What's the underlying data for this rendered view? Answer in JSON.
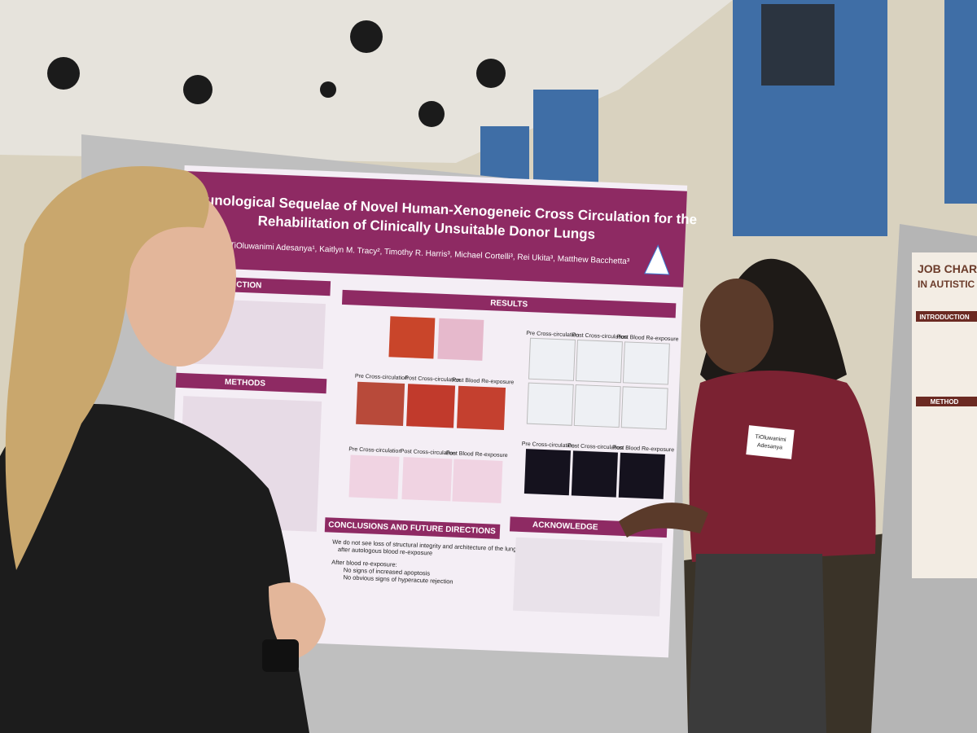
{
  "poster": {
    "title_line1": "he Immunological Sequelae of Novel Human-Xenogeneic Cross Circulation for the",
    "title_line2": "Rehabilitation of Clinically Unsuitable Donor Lungs",
    "authors": "TiOluwanimi Adesanya¹, Kaitlyn M. Tracy², Timothy R. Harris³, Michael Cortelli³, Rei Ukita³, Matthew Bacchetta³",
    "sections": {
      "introduction": "CTION",
      "methods": "METHODS",
      "results": "RESULTS",
      "conclusions": "CONCLUSIONS AND FUTURE DIRECTIONS",
      "acknowledgements": "ACKNOWLEDGE"
    },
    "panel_labels": [
      "Pre Cross-circulation",
      "Post Cross-circulation",
      "Post Blood Re-exposure"
    ],
    "conclusions": [
      "We do not see loss of structural integrity and architecture of the lungs",
      "after autologous blood re-exposure",
      "After blood re-exposure:",
      "No signs of increased apoptosis",
      "No obvious signs of hyperacute rejection"
    ]
  },
  "name_tag": {
    "first": "TiOluwanimi",
    "last": "Adesanya"
  },
  "side_poster": {
    "title_line1": "JOB CHARACT",
    "title_line2": "IN AUTISTIC AD",
    "sections": [
      "INTRODUCTION",
      "METHOD"
    ]
  }
}
